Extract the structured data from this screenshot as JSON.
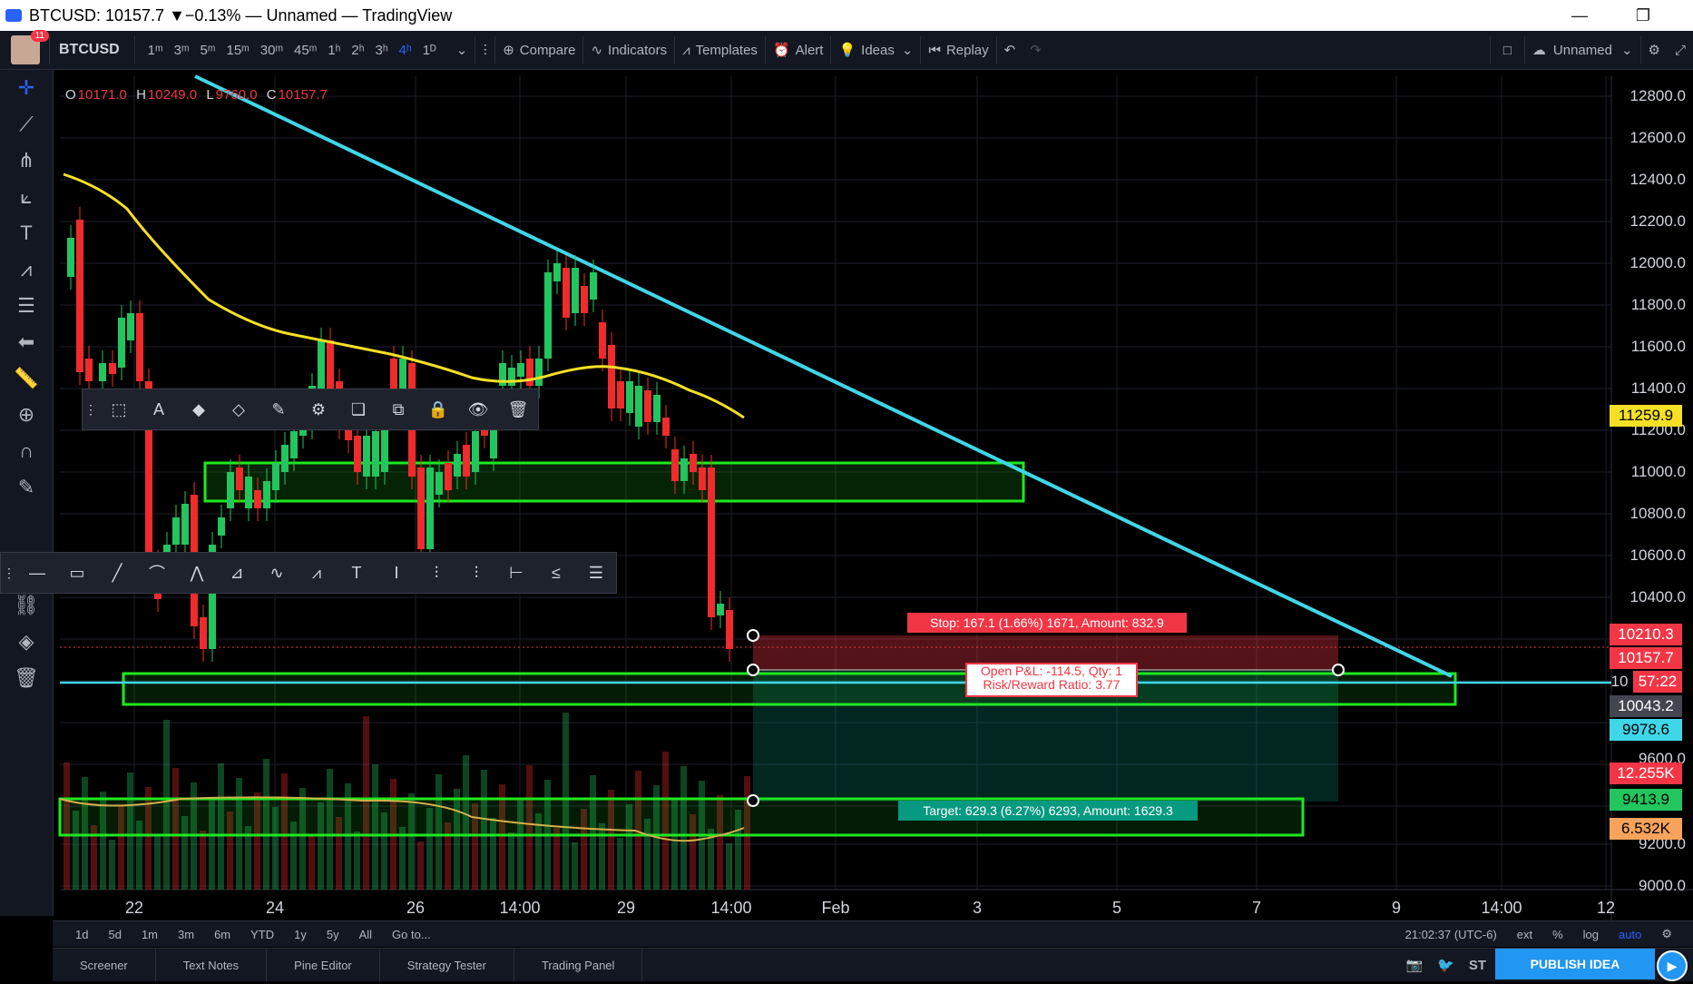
{
  "window": {
    "title": "BTCUSD: 10157.7 ▼−0.13% — Unnamed — TradingView",
    "minimize": "—",
    "restore": "❐"
  },
  "topbar": {
    "avatar_badge": "11",
    "symbol": "BTCUSD",
    "intervals": [
      "1ᵐ",
      "3ᵐ",
      "5ᵐ",
      "15ᵐ",
      "30ᵐ",
      "45ᵐ",
      "1ʰ",
      "2ʰ",
      "3ʰ",
      "4ʰ",
      "1ᴰ"
    ],
    "active_interval_index": 9,
    "compare": "Compare",
    "indicators": "Indicators",
    "templates": "Templates",
    "alert": "Alert",
    "ideas": "Ideas",
    "replay": "Replay",
    "layout_name": "Unnamed"
  },
  "ohlc": {
    "o_key": "O",
    "o": "10171.0",
    "h_key": "H",
    "h": "10249.0",
    "l_key": "L",
    "l": "9760.0",
    "c_key": "C",
    "c": "10157.7"
  },
  "price_axis": [
    "12800.0",
    "12600.0",
    "12400.0",
    "12200.0",
    "12000.0",
    "11800.0",
    "11600.0",
    "11400.0",
    "11200.0",
    "11000.0",
    "10800.0",
    "10600.0",
    "10400.0",
    "9600.0",
    "9200.0",
    "9000.0"
  ],
  "price_tags": {
    "ma": "11259.9",
    "stop_price": "10210.3",
    "last_price": "10157.7",
    "countdown": "57:22",
    "entry": "10043.2",
    "cyan_line": "9978.6",
    "volume_red": "12.255K",
    "target_price": "9413.9",
    "volume_orange": "6.532K",
    "partial": "10"
  },
  "time_axis": [
    "22",
    "24",
    "26",
    "14:00",
    "29",
    "14:00",
    "Feb",
    "3",
    "5",
    "7",
    "9",
    "14:00",
    "12"
  ],
  "position": {
    "stop_label": "Stop: 167.1 (1.66%) 1671, Amount: 832.9",
    "pl_line1": "Open P&L: -114.5, Qty: 1",
    "pl_line2": "Risk/Reward Ratio: 3.77",
    "target_label": "Target: 629.3 (6.27%) 6293, Amount: 1629.3"
  },
  "bottombar": {
    "ranges": [
      "1d",
      "5d",
      "1m",
      "3m",
      "6m",
      "YTD",
      "1y",
      "5y",
      "All"
    ],
    "goto": "Go to...",
    "time": "21:02:37 (UTC-6)",
    "ext": "ext",
    "pct": "%",
    "log": "log",
    "auto": "auto"
  },
  "tabs": [
    "Screener",
    "Text Notes",
    "Pine Editor",
    "Strategy Tester",
    "Trading Panel"
  ],
  "publish": "PUBLISH IDEA",
  "st": "ST",
  "colors": {
    "up": "#22c55e",
    "down": "#ef2b2b",
    "ma": "#f5e025",
    "trendline": "#3fd6e8",
    "zone": "#1fe81f",
    "accent": "#2962ff"
  }
}
